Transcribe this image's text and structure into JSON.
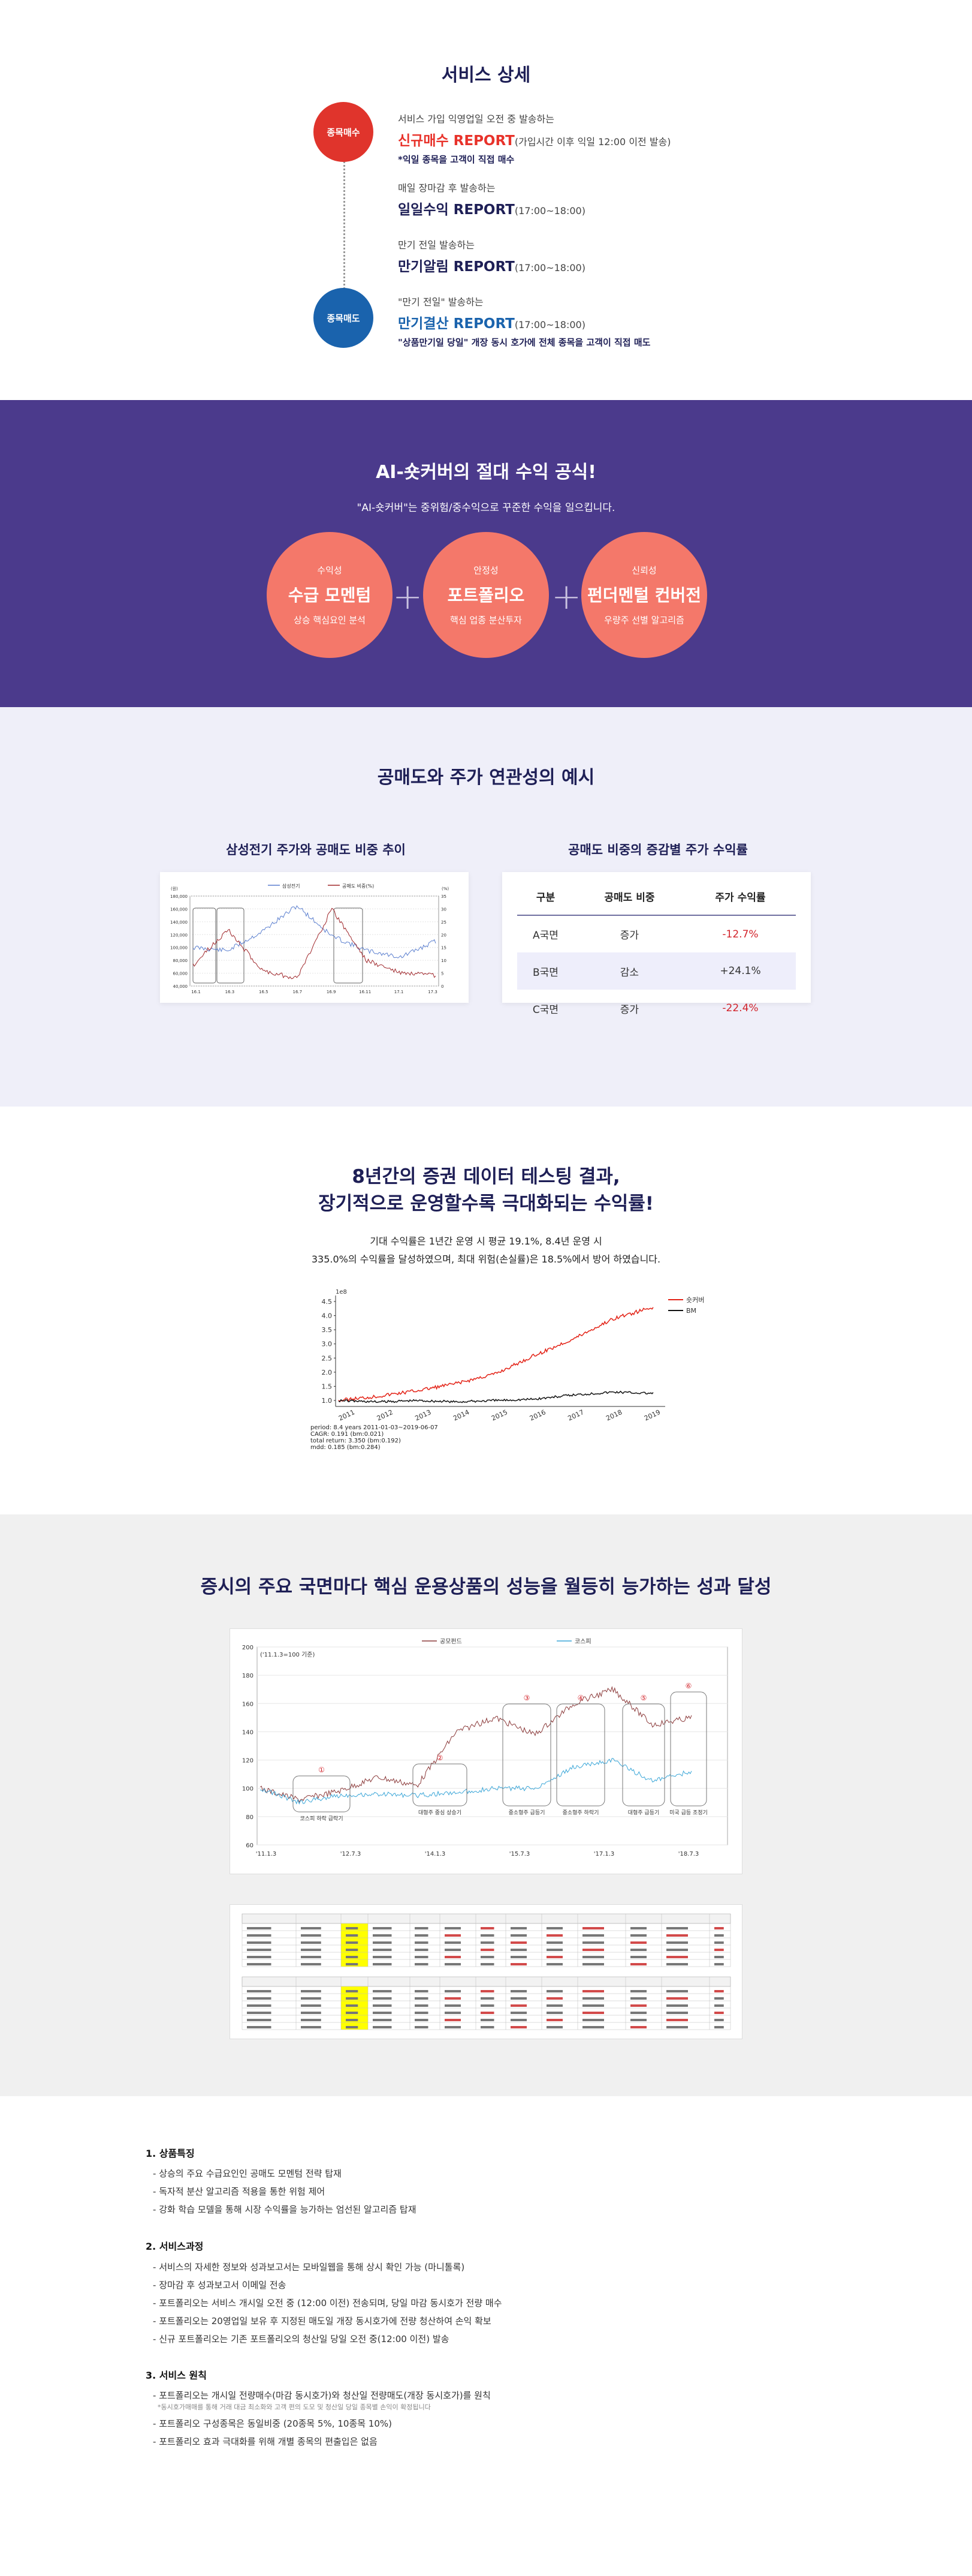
{
  "service": {
    "title": "서비스 상세",
    "steps": [
      {
        "circle": "종목매수",
        "small": "서비스 가입 익영업일 오전 중 발송하는",
        "big": "신규매수 REPORT",
        "sub": "(가입시간 이후 익일 12:00 이전 발송)",
        "note": "*익일 종목을 고객이 직접 매수"
      },
      {
        "small": "매일 장마감 후 발송하는",
        "big": "일일수익 REPORT",
        "sub": "(17:00~18:00)"
      },
      {
        "small": "만기 전일 발송하는",
        "big": "만기알림 REPORT",
        "sub": "(17:00~18:00)"
      },
      {
        "circle": "종목매도",
        "small": "\"만기 전일\" 발송하는",
        "big": "만기결산 REPORT",
        "sub": "(17:00~18:00)",
        "note": "\"상품만기일 당일\" 개장 동시 호가에 전체 종목을 고객이 직접 매도"
      }
    ],
    "colors": {
      "red_circle": "#e0342c",
      "blue_circle": "#1a63ad"
    }
  },
  "formula": {
    "title": "AI-숏커버의 절대 수익 공식!",
    "subtitle": "\"AI-숏커버\"는 중위험/중수익으로 꾸준한 수익을 일으킵니다.",
    "items": [
      {
        "k1": "수익성",
        "k2": "수급 모멘텀",
        "k3": "상승 핵심요인 분석"
      },
      {
        "k1": "안정성",
        "k2": "포트폴리오",
        "k3": "핵심 업종 분산투자"
      },
      {
        "k1": "신뢰성",
        "k2": "펀더멘털 컨버전",
        "k3": "우량주 선별 알고리즘"
      }
    ]
  },
  "shortsell": {
    "title": "공매도와 주가 연관성의 예시",
    "left_title": "삼성전기 주가와 공매도 비중 추이",
    "right_title": "공매도 비중의 증감별 주가 수익률",
    "chart_data": {
      "type": "line",
      "x": [
        "16.1",
        "16.3",
        "16.5",
        "16.7",
        "16.9",
        "16.11",
        "17.1",
        "17.3"
      ],
      "series": [
        {
          "name": "삼성전기",
          "values": [
            100000,
            95000,
            125000,
            165000,
            118000,
            95000,
            85000,
            110000
          ]
        },
        {
          "name": "공매도 비중(%)",
          "values": [
            8,
            22,
            6,
            3,
            30,
            10,
            5,
            4
          ]
        }
      ],
      "y_left": {
        "ticks": [
          "180,000",
          "160,000",
          "140,000",
          "120,000",
          "100,000",
          "80,000",
          "60,000",
          "40,000"
        ],
        "label": "(원)"
      },
      "y_right": {
        "ticks": [
          "35",
          "30",
          "25",
          "20",
          "15",
          "10",
          "5",
          "0"
        ],
        "label": "(%)"
      }
    },
    "table": {
      "headers": [
        "구분",
        "공매도 비중",
        "주가 수익률"
      ],
      "rows": [
        {
          "c1": "A국면",
          "c2": "증가",
          "c3": "-12.7%"
        },
        {
          "c1": "B국면",
          "c2": "감소",
          "c3": "+24.1%"
        },
        {
          "c1": "C국면",
          "c2": "증가",
          "c3": "-22.4%"
        }
      ]
    }
  },
  "backtest": {
    "title_line1": "8년간의 증권 데이터 테스팅 결과,",
    "title_line2": "장기적으로 운영할수록 극대화되는 수익률!",
    "desc_line1": "기대 수익률은 1년간 운영 시 평균 19.1%, 8.4년 운영 시",
    "desc_line2": "335.0%의 수익률을 달성하였으며, 최대 위험(손실률)은 18.5%에서 방어 하였습니다.",
    "chart_data": {
      "type": "line",
      "x": [
        "2011",
        "2012",
        "2013",
        "2014",
        "2015",
        "2016",
        "2017",
        "2018",
        "2019"
      ],
      "series": [
        {
          "name": "숏커버",
          "values": [
            1.0,
            1.15,
            1.35,
            1.6,
            1.95,
            2.6,
            3.2,
            3.9,
            4.3
          ]
        },
        {
          "name": "BM",
          "values": [
            1.0,
            0.95,
            1.0,
            0.95,
            1.0,
            1.05,
            1.2,
            1.3,
            1.25
          ]
        }
      ],
      "y_label": "1e8",
      "y_ticks": [
        "4.5",
        "4.0",
        "3.5",
        "3.0",
        "2.5",
        "2.0",
        "1.5",
        "1.0"
      ],
      "stats": [
        "period: 8.4 years      2011-01-03~2019-06-07",
        "CAGR:   0.191   (bm:0.021)",
        "total return:  3.350  (bm:0.192)",
        "mdd:    0.185   (bm:0.284)"
      ]
    }
  },
  "performance": {
    "title": "증시의 주요 국면마다 핵심 운용상품의 성능을 월등히 능가하는 성과 달성",
    "chart_data": {
      "type": "line",
      "unit_label": "('11.1.3=100 기준)",
      "series": [
        {
          "name": "공모펀드"
        },
        {
          "name": "코스피"
        }
      ],
      "x_labels": [
        "'11.1.3",
        "'12.7.3",
        "'14.1.3",
        "'15.7.3",
        "'17.1.3",
        "'18.7.3"
      ],
      "y_ticks": [
        "200",
        "180",
        "160",
        "140",
        "120",
        "100",
        "80",
        "60"
      ],
      "phases": [
        {
          "num": "①",
          "label": "코스피 하락 급락기"
        },
        {
          "num": "②",
          "label": "대형주 중심 상승기"
        },
        {
          "num": "③",
          "label": "중소형주 급등기"
        },
        {
          "num": "④",
          "label": "중소형주 하락기"
        },
        {
          "num": "⑤",
          "label": "대형주 급등기"
        },
        {
          "num": "⑥",
          "label": "미국 급등 조정기"
        }
      ]
    }
  },
  "notes": {
    "sections": [
      {
        "title": "1. 상품특징",
        "items": [
          "상승의 주요 수급요인인 공매도 모멘텀 전략 탑재",
          "독자적 분산 알고리즘 적용을 통한 위험 제어",
          "강화 학습 모델을 통해 시장 수익률을 능가하는 엄선된 알고리즘 탑재"
        ]
      },
      {
        "title": "2. 서비스과정",
        "items": [
          "서비스의 자세한 정보와 성과보고서는 모바일웹을 통해 상시 확인 가능 (마니톨록)",
          "장마감 후 성과보고서 이메일 전송",
          "포트폴리오는 서비스 개시일 오전 중 (12:00 이전) 전송되며, 당일 마감 동시호가 전량 매수",
          "포트폴리오는 20영업일 보유 후 지정된 매도일 개장 동시호가에 전량 청산하여 손익 확보",
          "신규 포트폴리오는 기존 포트폴리오의 청산일 당일 오전 중(12:00 이전) 발송"
        ]
      },
      {
        "title": "3. 서비스 원칙",
        "items": [
          "포트폴리오는 개시일 전량매수(마감 동시호가)와 청산일 전량매도(개장 동시호가)를 원칙",
          "포트폴리오 구성종목은 동일비중 (20종목 5%, 10종목 10%)",
          "포트폴리오 효과 극대화를 위해 개별 종목의 편출입은 없음"
        ],
        "small": "*동시호가매매를 통해 거래 대금 최소화와 고객 편의 도모 및 청산일 당일 종목별 손익이 확정됩니다"
      }
    ]
  }
}
